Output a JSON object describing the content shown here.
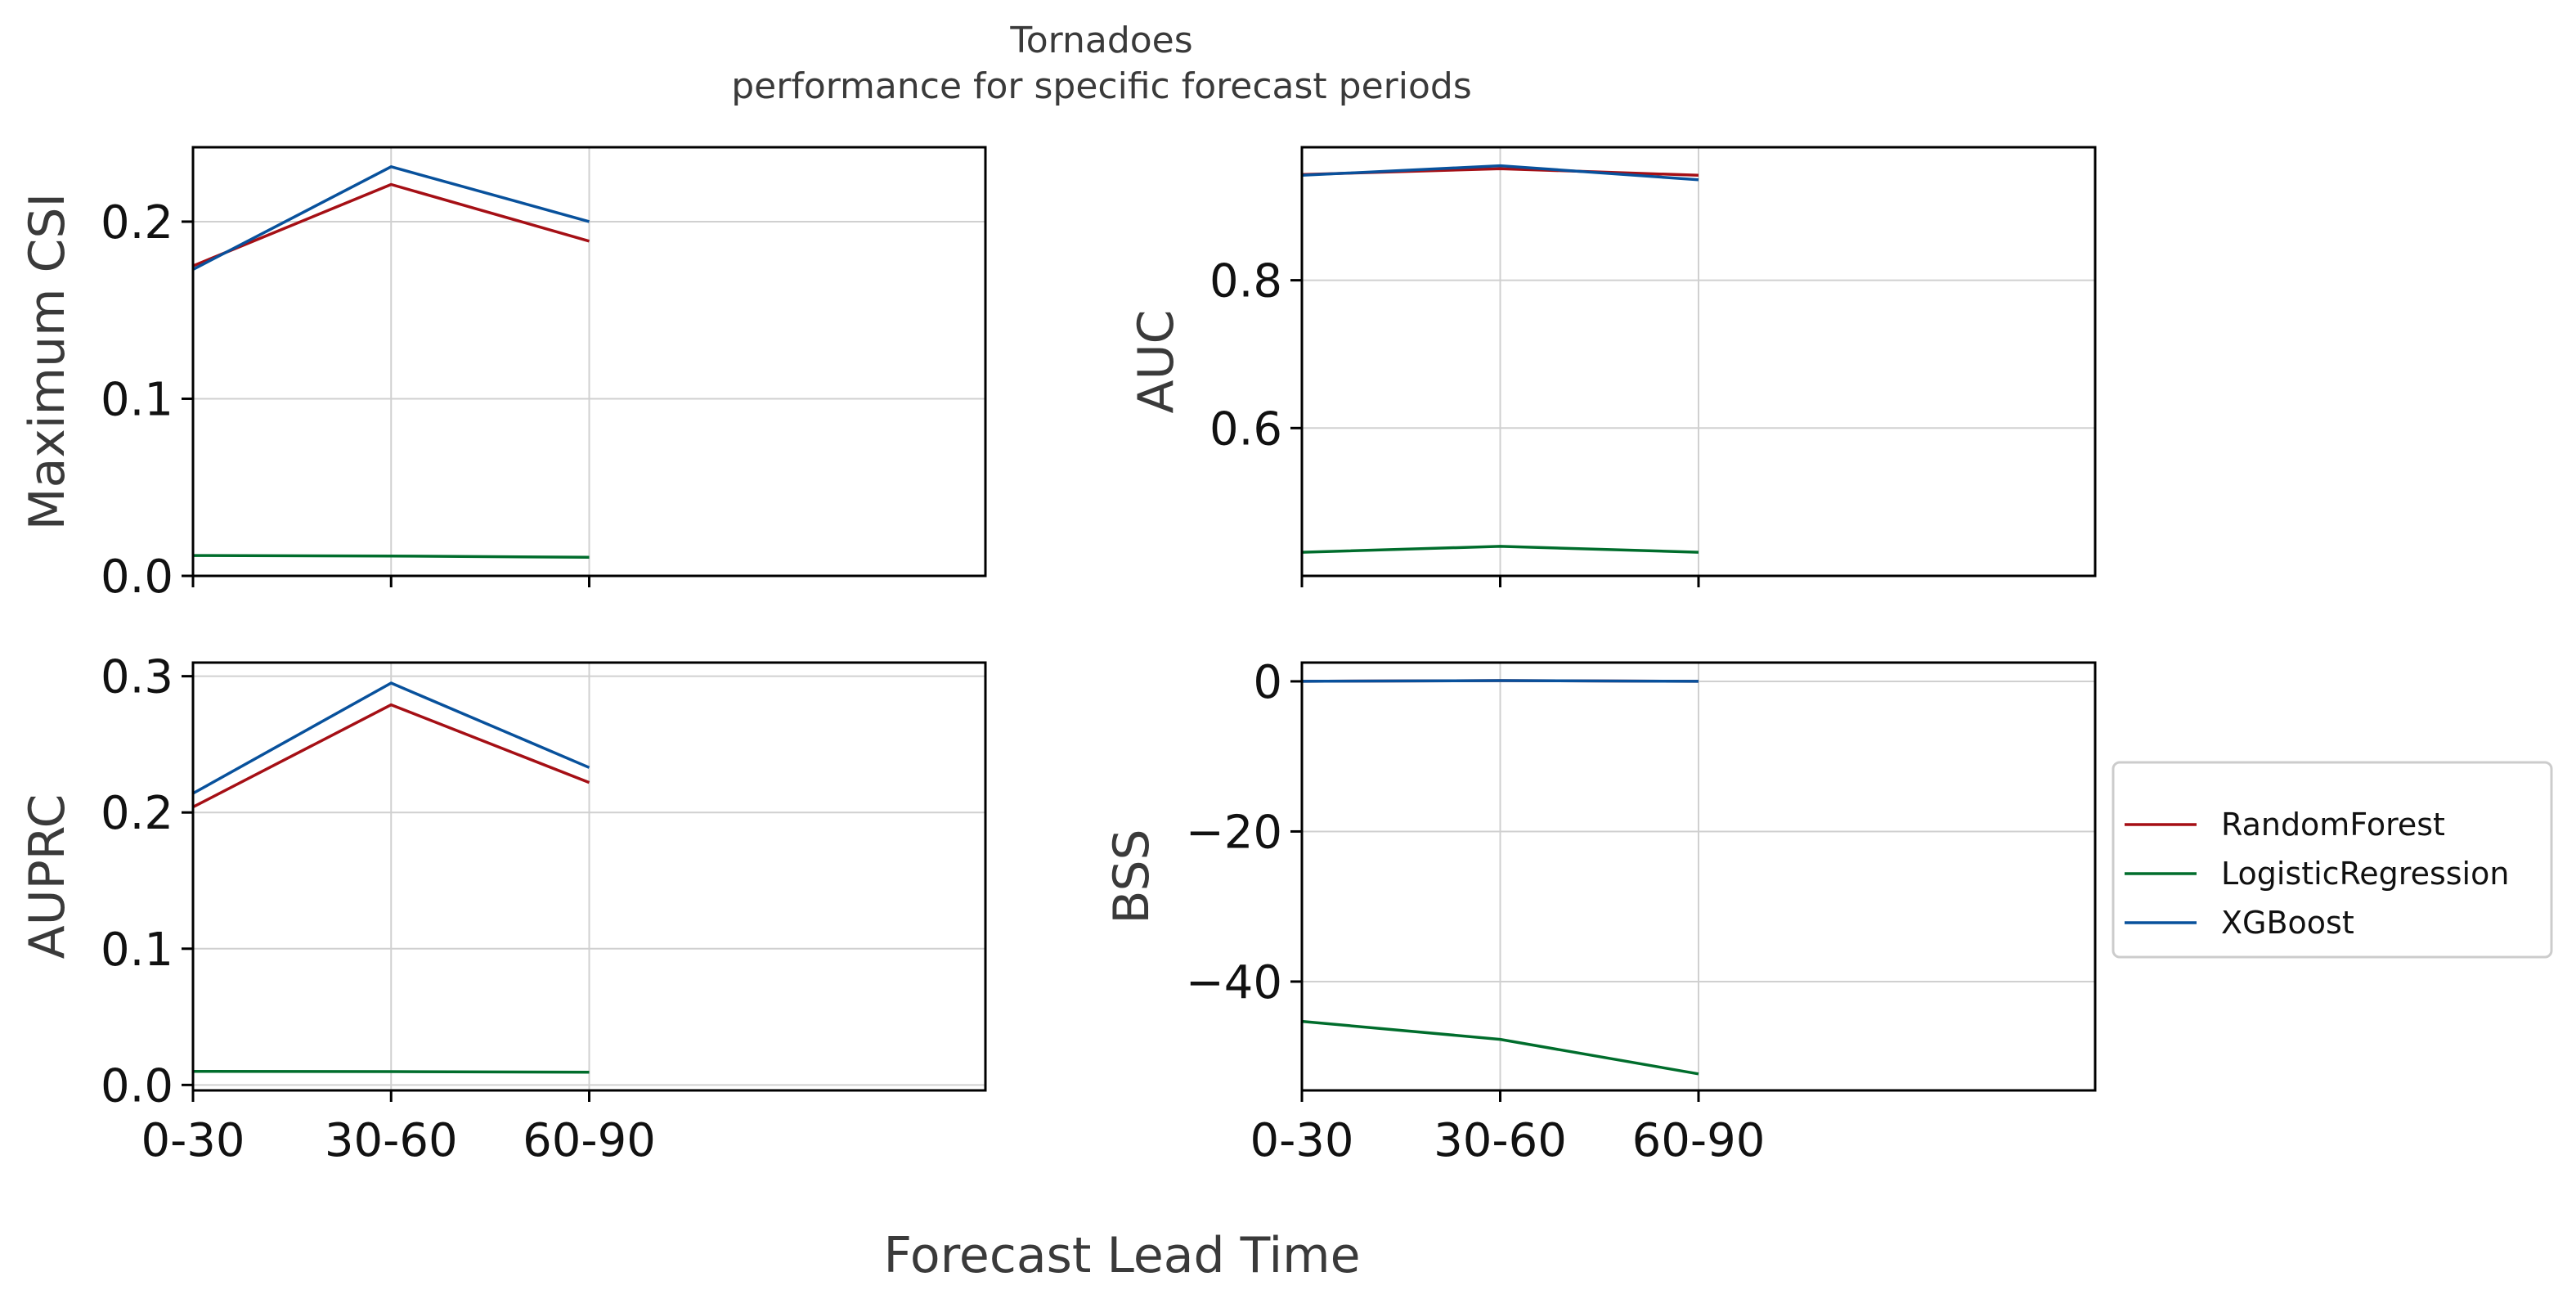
{
  "figure": {
    "title_line1": "Tornadoes",
    "title_line2": "performance for specific forecast periods",
    "xlabel": "Forecast Lead Time"
  },
  "legend": {
    "placement": "right",
    "entries": [
      "RandomForest",
      "LogisticRegression",
      "XGBoost"
    ]
  },
  "colors": {
    "RandomForest": "#a50f15",
    "LogisticRegression": "#006d2c",
    "XGBoost": "#08519c"
  },
  "chart_data": [
    {
      "type": "line",
      "name": "csi",
      "ylabel": "Maximum CSI",
      "categories": [
        "0-30",
        "30-60",
        "60-90"
      ],
      "x_range": [
        0,
        4
      ],
      "ylim": [
        0.0,
        0.242
      ],
      "yticks": [
        0.0,
        0.1,
        0.2
      ],
      "ytick_labels": [
        "0.0",
        "0.1",
        "0.2"
      ],
      "show_xtick_labels": false,
      "grid": true,
      "series": [
        {
          "name": "RandomForest",
          "values": [
            0.175,
            0.221,
            0.189
          ]
        },
        {
          "name": "LogisticRegression",
          "values": [
            0.0115,
            0.0112,
            0.0105
          ]
        },
        {
          "name": "XGBoost",
          "values": [
            0.173,
            0.231,
            0.2
          ]
        }
      ]
    },
    {
      "type": "line",
      "name": "auc",
      "ylabel": "AUC",
      "categories": [
        "0-30",
        "30-60",
        "60-90"
      ],
      "x_range": [
        0,
        4
      ],
      "ylim": [
        0.4,
        0.98
      ],
      "yticks": [
        0.6,
        0.8
      ],
      "ytick_labels": [
        "0.6",
        "0.8"
      ],
      "show_xtick_labels": false,
      "grid": true,
      "series": [
        {
          "name": "RandomForest",
          "values": [
            0.943,
            0.951,
            0.942
          ]
        },
        {
          "name": "LogisticRegression",
          "values": [
            0.432,
            0.44,
            0.432
          ]
        },
        {
          "name": "XGBoost",
          "values": [
            0.942,
            0.955,
            0.936
          ]
        }
      ]
    },
    {
      "type": "line",
      "name": "auprc",
      "ylabel": "AUPRC",
      "categories": [
        "0-30",
        "30-60",
        "60-90"
      ],
      "x_range": [
        0,
        4
      ],
      "ylim": [
        -0.004,
        0.31
      ],
      "yticks": [
        0.0,
        0.1,
        0.2,
        0.3
      ],
      "ytick_labels": [
        "0.0",
        "0.1",
        "0.2",
        "0.3"
      ],
      "show_xtick_labels": true,
      "grid": true,
      "series": [
        {
          "name": "RandomForest",
          "values": [
            0.204,
            0.279,
            0.222
          ]
        },
        {
          "name": "LogisticRegression",
          "values": [
            0.01,
            0.0098,
            0.0093
          ]
        },
        {
          "name": "XGBoost",
          "values": [
            0.214,
            0.295,
            0.233
          ]
        }
      ]
    },
    {
      "type": "line",
      "name": "bss",
      "ylabel": "BSS",
      "categories": [
        "0-30",
        "30-60",
        "60-90"
      ],
      "x_range": [
        0,
        4
      ],
      "ylim": [
        -54.5,
        2.5
      ],
      "yticks": [
        -40,
        -20,
        0
      ],
      "ytick_labels": [
        "−40",
        "−20",
        "0"
      ],
      "show_xtick_labels": true,
      "grid": true,
      "series": [
        {
          "name": "RandomForest",
          "values": [
            0.0,
            0.1,
            0.0
          ]
        },
        {
          "name": "LogisticRegression",
          "values": [
            -45.3,
            -47.7,
            -52.3
          ]
        },
        {
          "name": "XGBoost",
          "values": [
            0.0,
            0.1,
            0.0
          ]
        }
      ]
    }
  ]
}
